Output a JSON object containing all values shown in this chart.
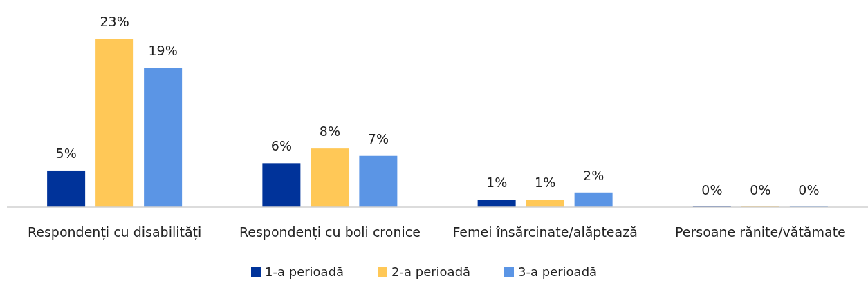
{
  "chart_data": {
    "type": "bar",
    "categories": [
      "Respondenți cu disabilități",
      "Respondenți cu boli cronice",
      "Femei însărcinate/alăptează",
      "Persoane rănite/vătămate"
    ],
    "series": [
      {
        "name": "1-a perioadă",
        "color": "#00339a",
        "values": [
          5,
          6,
          1,
          0
        ],
        "value_labels": [
          "5%",
          "6%",
          "1%",
          "0%"
        ]
      },
      {
        "name": "2-a perioadă",
        "color": "#ffc857",
        "values": [
          23,
          8,
          1,
          0
        ],
        "value_labels": [
          "23%",
          "8%",
          "1%",
          "0%"
        ]
      },
      {
        "name": "3-a perioadă",
        "color": "#5b95e5",
        "values": [
          19,
          7,
          2,
          0
        ],
        "value_labels": [
          "19%",
          "7%",
          "2%",
          "0%"
        ]
      }
    ],
    "legend": "bottom",
    "grid": false
  }
}
